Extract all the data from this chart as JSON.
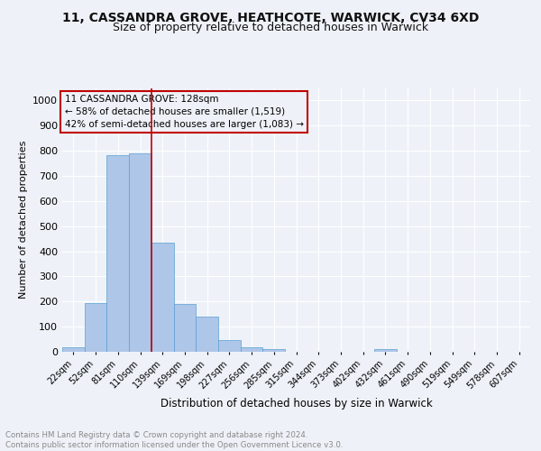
{
  "title1": "11, CASSANDRA GROVE, HEATHCOTE, WARWICK, CV34 6XD",
  "title2": "Size of property relative to detached houses in Warwick",
  "xlabel": "Distribution of detached houses by size in Warwick",
  "ylabel": "Number of detached properties",
  "bin_labels": [
    "22sqm",
    "52sqm",
    "81sqm",
    "110sqm",
    "139sqm",
    "169sqm",
    "198sqm",
    "227sqm",
    "256sqm",
    "285sqm",
    "315sqm",
    "344sqm",
    "373sqm",
    "402sqm",
    "432sqm",
    "461sqm",
    "490sqm",
    "519sqm",
    "549sqm",
    "578sqm",
    "607sqm"
  ],
  "bar_heights": [
    18,
    193,
    783,
    790,
    435,
    192,
    140,
    47,
    18,
    12,
    0,
    0,
    0,
    0,
    10,
    0,
    0,
    0,
    0,
    0,
    0
  ],
  "bar_color": "#aec6e8",
  "bar_edgecolor": "#5a9fd4",
  "vline_x": 3.5,
  "vline_color": "#c00000",
  "annotation_text": "11 CASSANDRA GROVE: 128sqm\n← 58% of detached houses are smaller (1,519)\n42% of semi-detached houses are larger (1,083) →",
  "annotation_box_edgecolor": "#c00000",
  "ylim": [
    0,
    1050
  ],
  "yticks": [
    0,
    100,
    200,
    300,
    400,
    500,
    600,
    700,
    800,
    900,
    1000
  ],
  "footnote": "Contains HM Land Registry data © Crown copyright and database right 2024.\nContains public sector information licensed under the Open Government Licence v3.0.",
  "bg_color": "#eef2f8",
  "grid_color": "#ffffff",
  "title1_fontsize": 10,
  "title2_fontsize": 9
}
